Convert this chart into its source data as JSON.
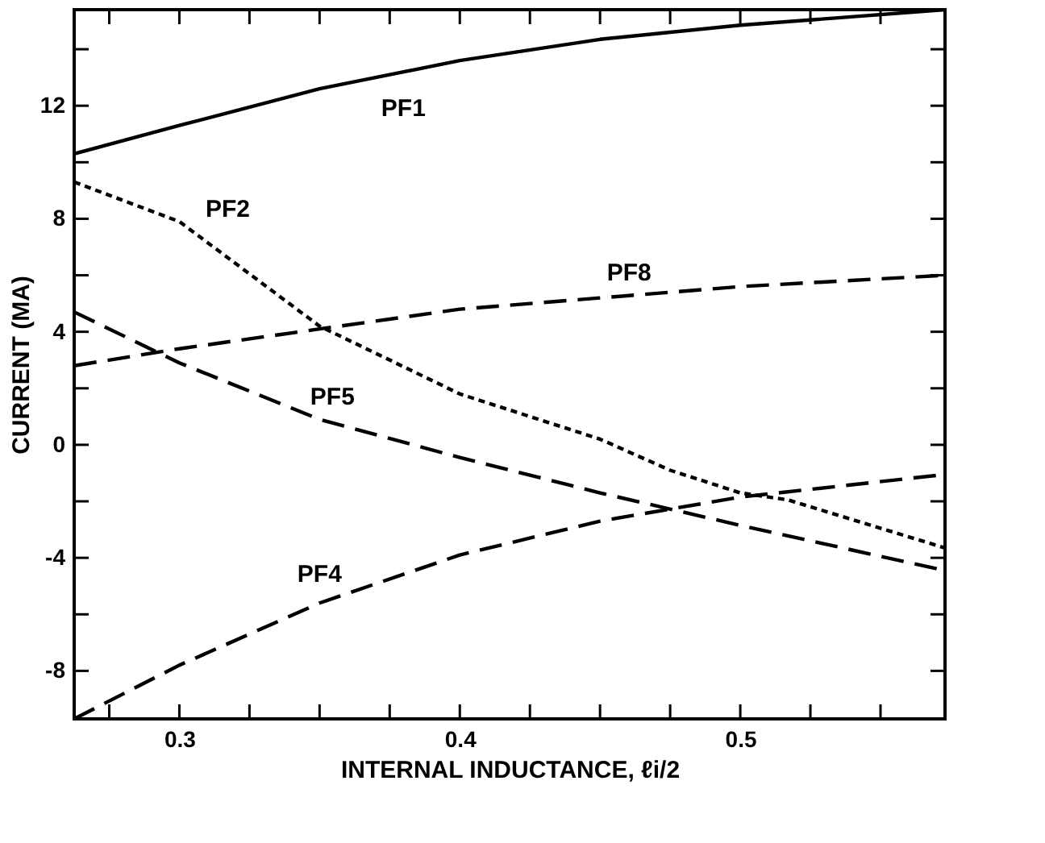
{
  "chart_data": {
    "type": "line",
    "xlabel": "INTERNAL INDUCTANCE, ℓi/2",
    "ylabel": "CURRENT (MA)",
    "x": [
      0.2625,
      0.3,
      0.35,
      0.4,
      0.45,
      0.5,
      0.573
    ],
    "xlim": [
      0.2625,
      0.573
    ],
    "ylim": [
      -9.7,
      15.4
    ],
    "xticks": [
      {
        "value": 0.275,
        "label": null
      },
      0.3,
      {
        "value": 0.325,
        "label": null
      },
      {
        "value": 0.35,
        "label": null
      },
      {
        "value": 0.375,
        "label": null
      },
      0.4,
      {
        "value": 0.425,
        "label": null
      },
      {
        "value": 0.45,
        "label": null
      },
      {
        "value": 0.475,
        "label": null
      },
      0.5,
      {
        "value": 0.525,
        "label": null
      },
      {
        "value": 0.55,
        "label": null
      }
    ],
    "yticks": [
      -8,
      {
        "value": -6,
        "label": null
      },
      -4,
      {
        "value": -2,
        "label": null
      },
      0,
      {
        "value": 2,
        "label": null
      },
      4,
      {
        "value": 6,
        "label": null
      },
      8,
      {
        "value": 10,
        "label": null
      },
      12,
      {
        "value": 14,
        "label": null
      }
    ],
    "grid": false,
    "marker": "none",
    "series": [
      {
        "name": "PF1",
        "color": "#000000",
        "line_style": "solid",
        "values": [
          10.3,
          11.3,
          12.6,
          13.6,
          14.35,
          14.85,
          15.4
        ]
      },
      {
        "name": "PF2",
        "color": "#000000",
        "line_style": "dotted",
        "x": [
          0.2625,
          0.3,
          0.35,
          0.4,
          0.45,
          0.475,
          0.5,
          0.517,
          0.573
        ],
        "values": [
          9.3,
          7.9,
          4.2,
          1.8,
          0.2,
          -0.9,
          -1.7,
          -1.95,
          -3.65
        ]
      },
      {
        "name": "PF8",
        "color": "#000000",
        "line_style": "dashed",
        "values": [
          2.8,
          3.4,
          4.1,
          4.8,
          5.2,
          5.6,
          6.0
        ]
      },
      {
        "name": "PF5",
        "color": "#000000",
        "line_style": "dashed",
        "values": [
          4.7,
          2.9,
          0.9,
          -0.45,
          -1.7,
          -2.85,
          -4.45
        ]
      },
      {
        "name": "PF4",
        "color": "#000000",
        "line_style": "dashed",
        "values": [
          -9.7,
          -7.8,
          -5.6,
          -3.9,
          -2.7,
          -1.85,
          -1.05
        ]
      }
    ]
  }
}
